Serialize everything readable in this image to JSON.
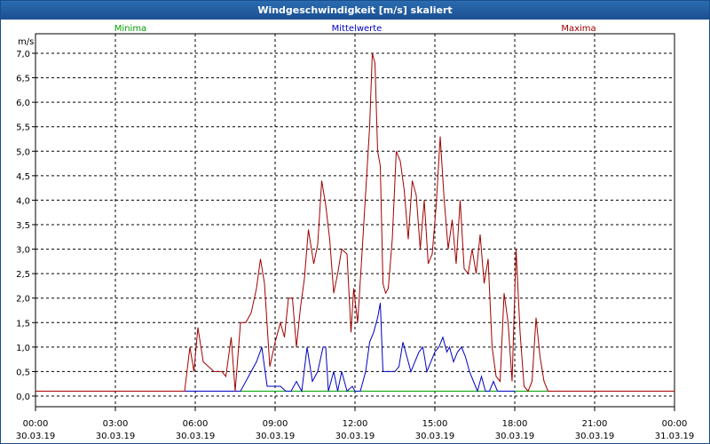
{
  "window": {
    "title": "Windgeschwindigkeit [m/s] skaliert"
  },
  "legend": [
    {
      "label": "Minima",
      "color": "#00a000"
    },
    {
      "label": "Mittelwerte",
      "color": "#0000c0"
    },
    {
      "label": "Maxima",
      "color": "#a00000"
    }
  ],
  "chart_data": {
    "type": "line",
    "ylabel": "m/s",
    "ylim": [
      0,
      7.0
    ],
    "yticks": [
      "0,0",
      "0,5",
      "1,0",
      "1,5",
      "2,0",
      "2,5",
      "3,0",
      "3,5",
      "4,0",
      "4,5",
      "5,0",
      "5,5",
      "6,0",
      "6,5",
      "7,0"
    ],
    "xlim_hours": [
      0,
      24
    ],
    "xticks": [
      {
        "time": "00:00",
        "date": "30.03.19"
      },
      {
        "time": "03:00",
        "date": "30.03.19"
      },
      {
        "time": "06:00",
        "date": "30.03.19"
      },
      {
        "time": "09:00",
        "date": "30.03.19"
      },
      {
        "time": "12:00",
        "date": "30.03.19"
      },
      {
        "time": "15:00",
        "date": "30.03.19"
      },
      {
        "time": "18:00",
        "date": "30.03.19"
      },
      {
        "time": "21:00",
        "date": "30.03.19"
      },
      {
        "time": "00:00",
        "date": "31.03.19"
      }
    ],
    "grid": true,
    "legend_position": "top",
    "series": [
      {
        "name": "Minima",
        "color": "#00a000",
        "points": [
          [
            0,
            0.1
          ],
          [
            24,
            0.1
          ]
        ]
      },
      {
        "name": "Mittelwerte",
        "color": "#0000c0",
        "points": [
          [
            5.6,
            0.1
          ],
          [
            7.5,
            0.1
          ],
          [
            7.7,
            0.1
          ],
          [
            7.9,
            0.3
          ],
          [
            8.1,
            0.5
          ],
          [
            8.3,
            0.7
          ],
          [
            8.5,
            1.0
          ],
          [
            8.7,
            0.2
          ],
          [
            9.2,
            0.2
          ],
          [
            9.4,
            0.1
          ],
          [
            9.6,
            0.1
          ],
          [
            9.8,
            0.3
          ],
          [
            10.0,
            0.1
          ],
          [
            10.2,
            1.0
          ],
          [
            10.4,
            0.3
          ],
          [
            10.6,
            0.5
          ],
          [
            10.8,
            1.0
          ],
          [
            10.9,
            1.0
          ],
          [
            11.0,
            0.1
          ],
          [
            11.2,
            0.5
          ],
          [
            11.35,
            0.1
          ],
          [
            11.5,
            0.5
          ],
          [
            11.7,
            0.1
          ],
          [
            11.9,
            0.2
          ],
          [
            12.0,
            0.1
          ],
          [
            12.2,
            0.1
          ],
          [
            12.4,
            0.5
          ],
          [
            12.55,
            1.1
          ],
          [
            12.7,
            1.3
          ],
          [
            12.85,
            1.6
          ],
          [
            12.95,
            1.9
          ],
          [
            13.05,
            0.5
          ],
          [
            13.2,
            0.5
          ],
          [
            13.35,
            0.5
          ],
          [
            13.5,
            0.5
          ],
          [
            13.65,
            0.6
          ],
          [
            13.8,
            1.1
          ],
          [
            13.95,
            0.8
          ],
          [
            14.1,
            0.5
          ],
          [
            14.25,
            0.7
          ],
          [
            14.4,
            0.9
          ],
          [
            14.55,
            1.0
          ],
          [
            14.7,
            0.5
          ],
          [
            14.85,
            0.7
          ],
          [
            15.0,
            0.9
          ],
          [
            15.15,
            1.0
          ],
          [
            15.3,
            1.2
          ],
          [
            15.45,
            0.9
          ],
          [
            15.55,
            1.0
          ],
          [
            15.7,
            0.7
          ],
          [
            15.85,
            0.9
          ],
          [
            16.0,
            1.0
          ],
          [
            16.15,
            0.8
          ],
          [
            16.3,
            0.5
          ],
          [
            16.45,
            0.3
          ],
          [
            16.6,
            0.1
          ],
          [
            16.75,
            0.4
          ],
          [
            16.9,
            0.1
          ],
          [
            17.05,
            0.1
          ],
          [
            17.2,
            0.3
          ],
          [
            17.35,
            0.1
          ],
          [
            17.5,
            0.1
          ],
          [
            17.65,
            0.1
          ],
          [
            18.0,
            0.1
          ]
        ]
      },
      {
        "name": "Maxima",
        "color": "#a00000",
        "points": [
          [
            0,
            0.1
          ],
          [
            5.6,
            0.1
          ],
          [
            5.8,
            1.0
          ],
          [
            5.95,
            0.5
          ],
          [
            6.1,
            1.4
          ],
          [
            6.3,
            0.7
          ],
          [
            6.5,
            0.6
          ],
          [
            6.7,
            0.5
          ],
          [
            7.0,
            0.5
          ],
          [
            7.15,
            0.4
          ],
          [
            7.35,
            1.2
          ],
          [
            7.5,
            0.1
          ],
          [
            7.7,
            1.5
          ],
          [
            7.9,
            1.5
          ],
          [
            8.1,
            1.7
          ],
          [
            8.3,
            2.2
          ],
          [
            8.45,
            2.8
          ],
          [
            8.6,
            2.3
          ],
          [
            8.8,
            0.6
          ],
          [
            9.0,
            1.1
          ],
          [
            9.2,
            1.5
          ],
          [
            9.35,
            1.2
          ],
          [
            9.5,
            2.0
          ],
          [
            9.65,
            2.0
          ],
          [
            9.8,
            1.0
          ],
          [
            9.95,
            1.8
          ],
          [
            10.1,
            2.4
          ],
          [
            10.25,
            3.4
          ],
          [
            10.45,
            2.7
          ],
          [
            10.6,
            3.1
          ],
          [
            10.75,
            4.4
          ],
          [
            10.9,
            3.9
          ],
          [
            11.05,
            3.2
          ],
          [
            11.2,
            2.1
          ],
          [
            11.35,
            2.5
          ],
          [
            11.5,
            3.0
          ],
          [
            11.7,
            2.9
          ],
          [
            11.85,
            1.3
          ],
          [
            11.95,
            2.2
          ],
          [
            12.1,
            1.5
          ],
          [
            12.25,
            2.8
          ],
          [
            12.45,
            4.6
          ],
          [
            12.55,
            5.5
          ],
          [
            12.65,
            7.0
          ],
          [
            12.75,
            6.8
          ],
          [
            12.85,
            5.0
          ],
          [
            12.95,
            4.7
          ],
          [
            13.05,
            2.3
          ],
          [
            13.15,
            2.1
          ],
          [
            13.25,
            2.2
          ],
          [
            13.4,
            3.2
          ],
          [
            13.55,
            5.0
          ],
          [
            13.7,
            4.8
          ],
          [
            13.85,
            4.2
          ],
          [
            14.0,
            3.2
          ],
          [
            14.15,
            4.4
          ],
          [
            14.3,
            4.1
          ],
          [
            14.45,
            3.0
          ],
          [
            14.6,
            4.0
          ],
          [
            14.75,
            2.7
          ],
          [
            14.9,
            2.9
          ],
          [
            15.05,
            3.9
          ],
          [
            15.2,
            5.3
          ],
          [
            15.35,
            4.0
          ],
          [
            15.5,
            3.0
          ],
          [
            15.65,
            3.6
          ],
          [
            15.8,
            2.7
          ],
          [
            15.95,
            4.0
          ],
          [
            16.1,
            2.6
          ],
          [
            16.25,
            2.5
          ],
          [
            16.4,
            3.0
          ],
          [
            16.55,
            2.5
          ],
          [
            16.7,
            3.3
          ],
          [
            16.85,
            2.3
          ],
          [
            17.0,
            2.8
          ],
          [
            17.15,
            1.0
          ],
          [
            17.3,
            0.4
          ],
          [
            17.45,
            0.3
          ],
          [
            17.6,
            2.1
          ],
          [
            17.75,
            1.5
          ],
          [
            17.9,
            0.3
          ],
          [
            18.05,
            3.0
          ],
          [
            18.2,
            1.3
          ],
          [
            18.35,
            0.2
          ],
          [
            18.5,
            0.1
          ],
          [
            18.65,
            0.3
          ],
          [
            18.8,
            1.6
          ],
          [
            18.95,
            0.8
          ],
          [
            19.1,
            0.3
          ],
          [
            19.25,
            0.1
          ],
          [
            24,
            0.1
          ]
        ]
      }
    ]
  }
}
